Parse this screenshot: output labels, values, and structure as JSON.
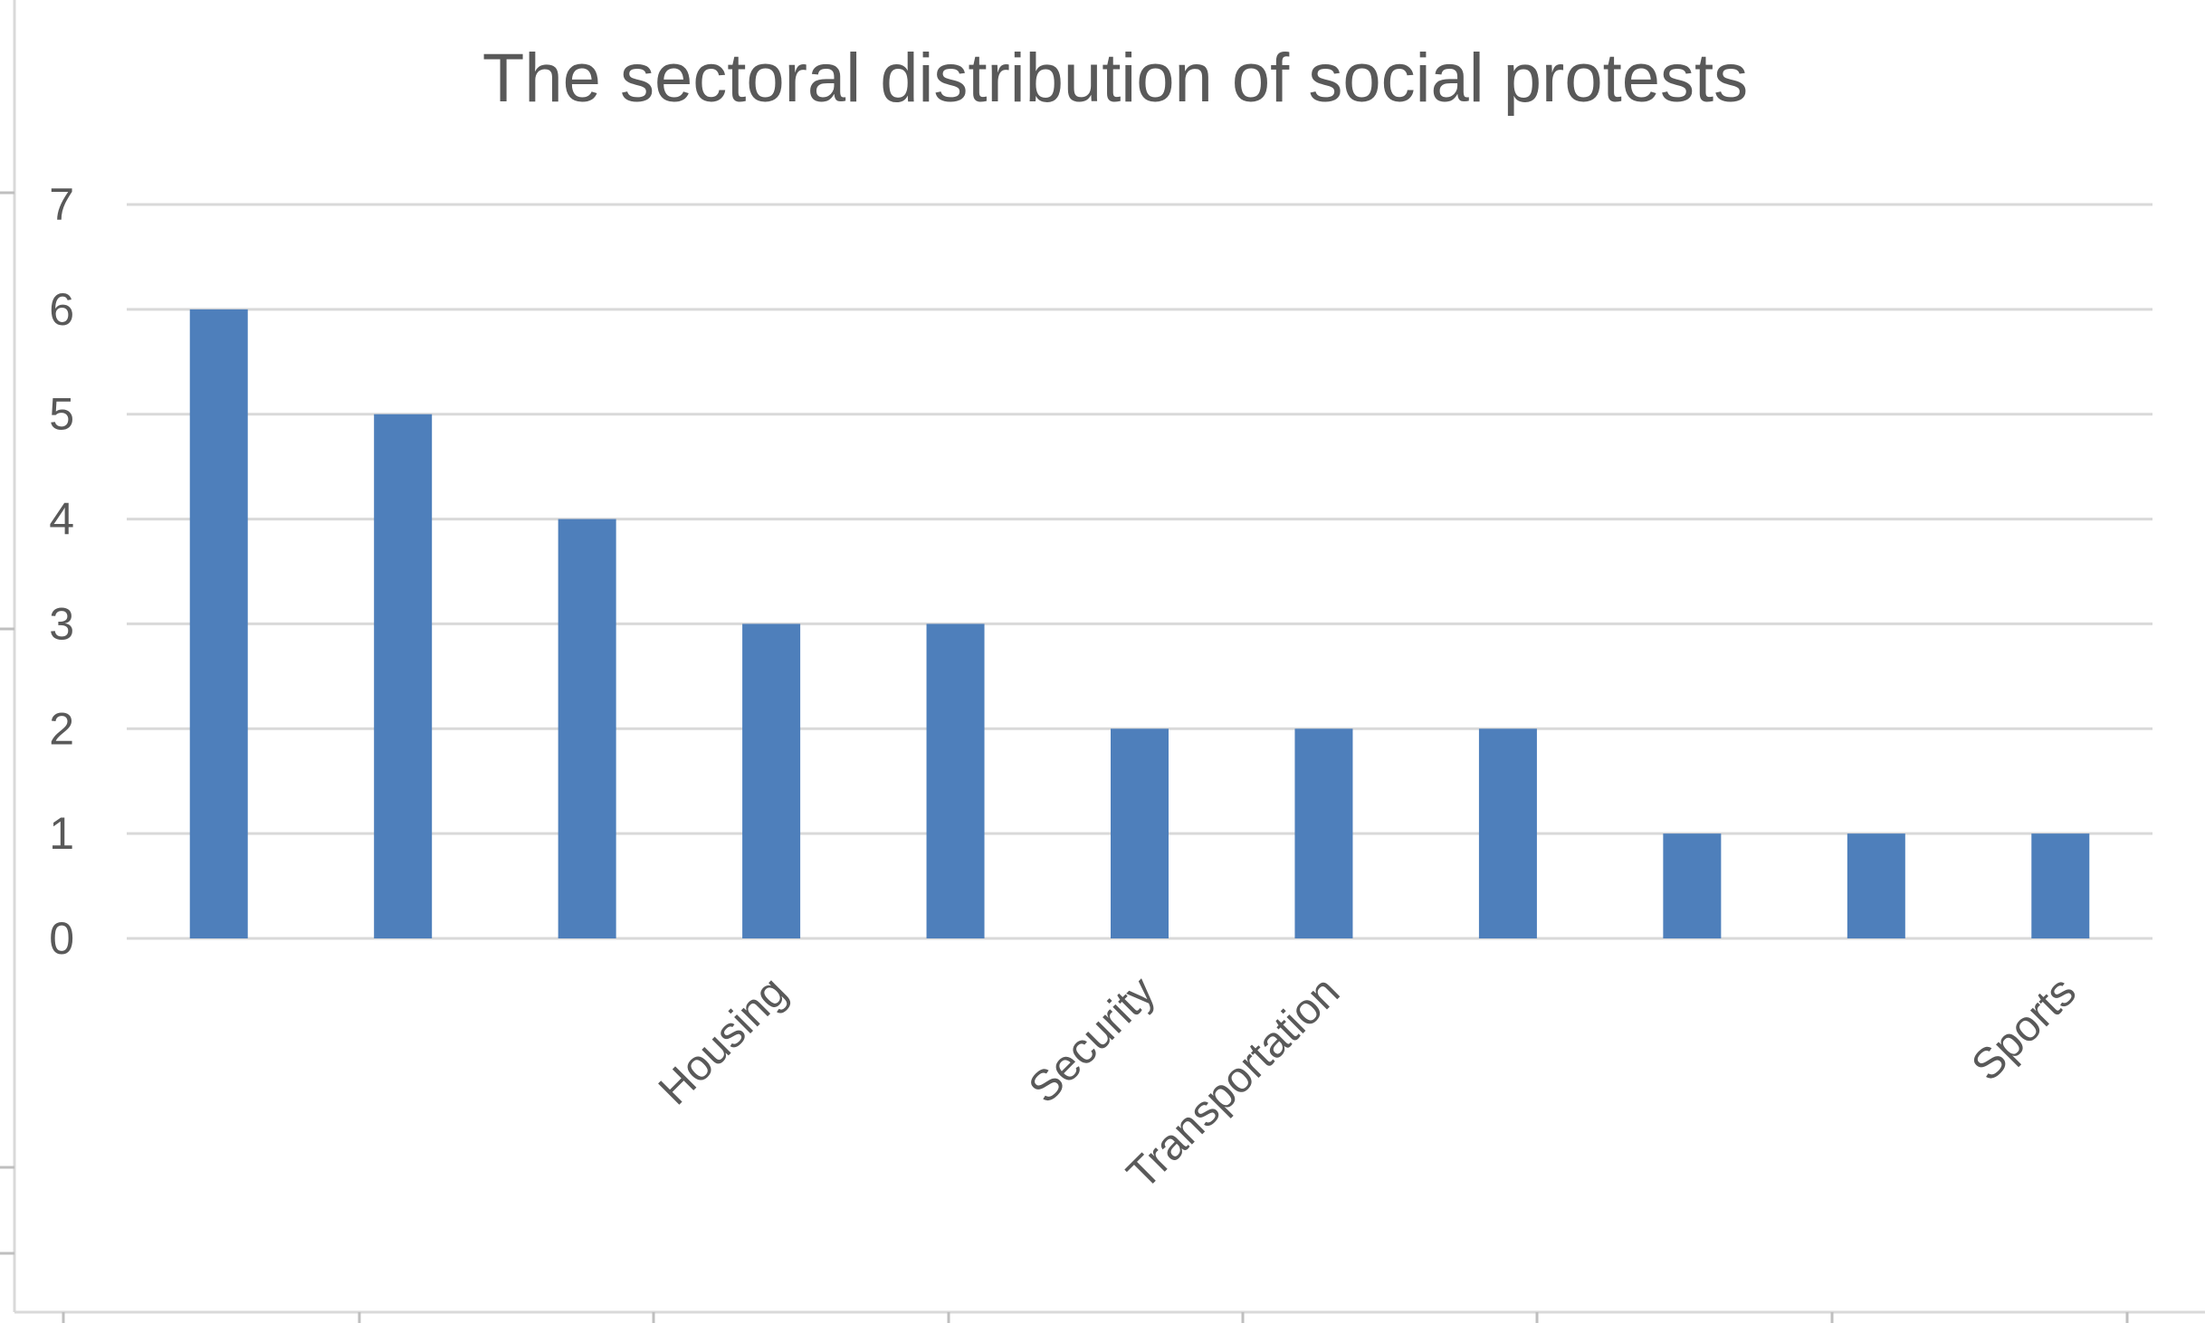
{
  "chart_data": {
    "type": "bar",
    "title": "The sectoral distribution of social protests",
    "xlabel": "",
    "ylabel": "",
    "categories": [
      "",
      "",
      "",
      "Housing",
      "",
      "Security",
      "Transportation",
      "",
      "",
      "",
      "Sports"
    ],
    "values": [
      6,
      5,
      4,
      3,
      3,
      2,
      2,
      2,
      1,
      1,
      1
    ],
    "ylim": [
      0,
      7
    ],
    "yticks": [
      0,
      1,
      2,
      3,
      4,
      5,
      6,
      7
    ],
    "grid": true,
    "legend": "none",
    "colors": {
      "bar": "#4e7fbb",
      "grid": "#d9d9d9",
      "text": "#595959",
      "frame": "#d9d9d9"
    }
  }
}
